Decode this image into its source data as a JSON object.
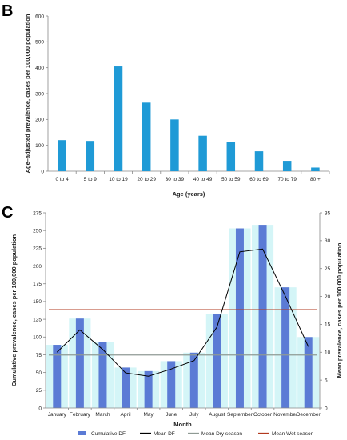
{
  "panels": {
    "b_label": "B",
    "c_label": "C"
  },
  "chart_data": [
    {
      "type": "bar",
      "categories": [
        "0 to 4",
        "5 to 9",
        "10 to 19",
        "20 to 29",
        "30 to 39",
        "40 to 49",
        "50 to 59",
        "60 to 69",
        "70 to 79",
        "80 +"
      ],
      "values": [
        120,
        117,
        405,
        265,
        200,
        137,
        112,
        77,
        40,
        14
      ],
      "xlabel": "Age (years)",
      "ylabel": "Age–adjusted prevalence, cases per 100,000 population",
      "ylim": [
        0,
        600
      ],
      "yticks": [
        0,
        100,
        200,
        300,
        400,
        500,
        600
      ],
      "bar_color": "#1f9ad6",
      "grid": false
    },
    {
      "type": "bar",
      "categories": [
        "January",
        "February",
        "March",
        "April",
        "May",
        "June",
        "July",
        "August",
        "September",
        "October",
        "November",
        "December"
      ],
      "xlabel": "Month",
      "ylabel": "Cumulative prevalence, cases per 100,000 population",
      "ylabel_right": "Mean prevalence, cases per 100,000 population",
      "ylim": [
        0,
        275
      ],
      "yticks": [
        0,
        25,
        50,
        75,
        100,
        125,
        150,
        175,
        200,
        225,
        250,
        275
      ],
      "ylim_right": [
        0,
        35
      ],
      "yticks_right": [
        0,
        5,
        10,
        15,
        20,
        25,
        30,
        35
      ],
      "series": [
        {
          "name": "Cumulative DF",
          "type": "bar",
          "axis": "left",
          "color": "#5b7bd5",
          "values": [
            89,
            126,
            93,
            57,
            52,
            66,
            78,
            132,
            253,
            258,
            170,
            100
          ]
        },
        {
          "name": "Mean DF",
          "type": "line",
          "axis": "right",
          "color": "#000000",
          "values": [
            10,
            14,
            10.5,
            6.3,
            5.7,
            7,
            8.5,
            14.5,
            28,
            28.5,
            20,
            11
          ]
        },
        {
          "name": "Mean Dry season",
          "type": "hline",
          "axis": "right",
          "color": "#8f9a94",
          "value": 9.5
        },
        {
          "name": "Mean Wet season",
          "type": "hline",
          "axis": "right",
          "color": "#b23a1f",
          "value": 17.6
        }
      ],
      "shadow_color": "#cdf3f6",
      "legend_position": "bottom",
      "grid": false
    }
  ]
}
